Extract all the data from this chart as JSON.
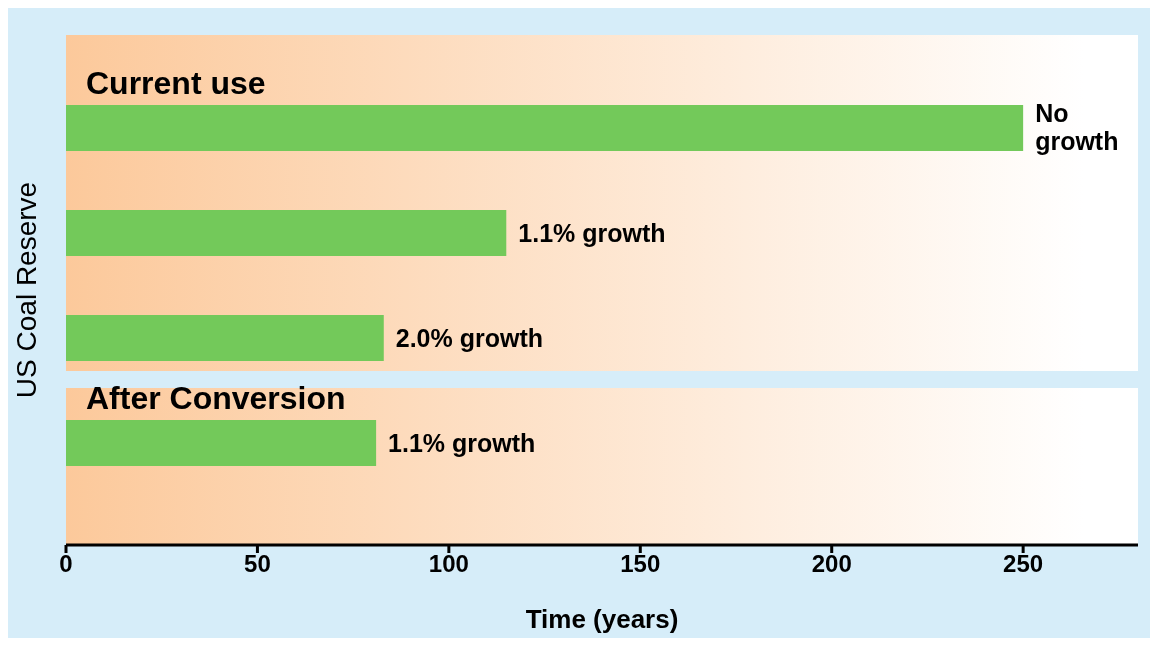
{
  "chart_data": {
    "type": "bar",
    "orientation": "horizontal",
    "categories": [
      "No growth",
      "1.1% growth",
      "2.0% growth",
      "1.1% growth"
    ],
    "values": [
      250,
      115,
      83,
      81
    ],
    "color": "#73c95a",
    "xlim": [
      0,
      280
    ],
    "xticks": [
      0,
      50,
      100,
      150,
      200,
      250
    ],
    "xlabel": "Time (years)",
    "ylabel": "US Coal Reserve",
    "annotations": [
      "Current use",
      "After Conversion"
    ],
    "tick_labels": "x",
    "grid": false
  }
}
